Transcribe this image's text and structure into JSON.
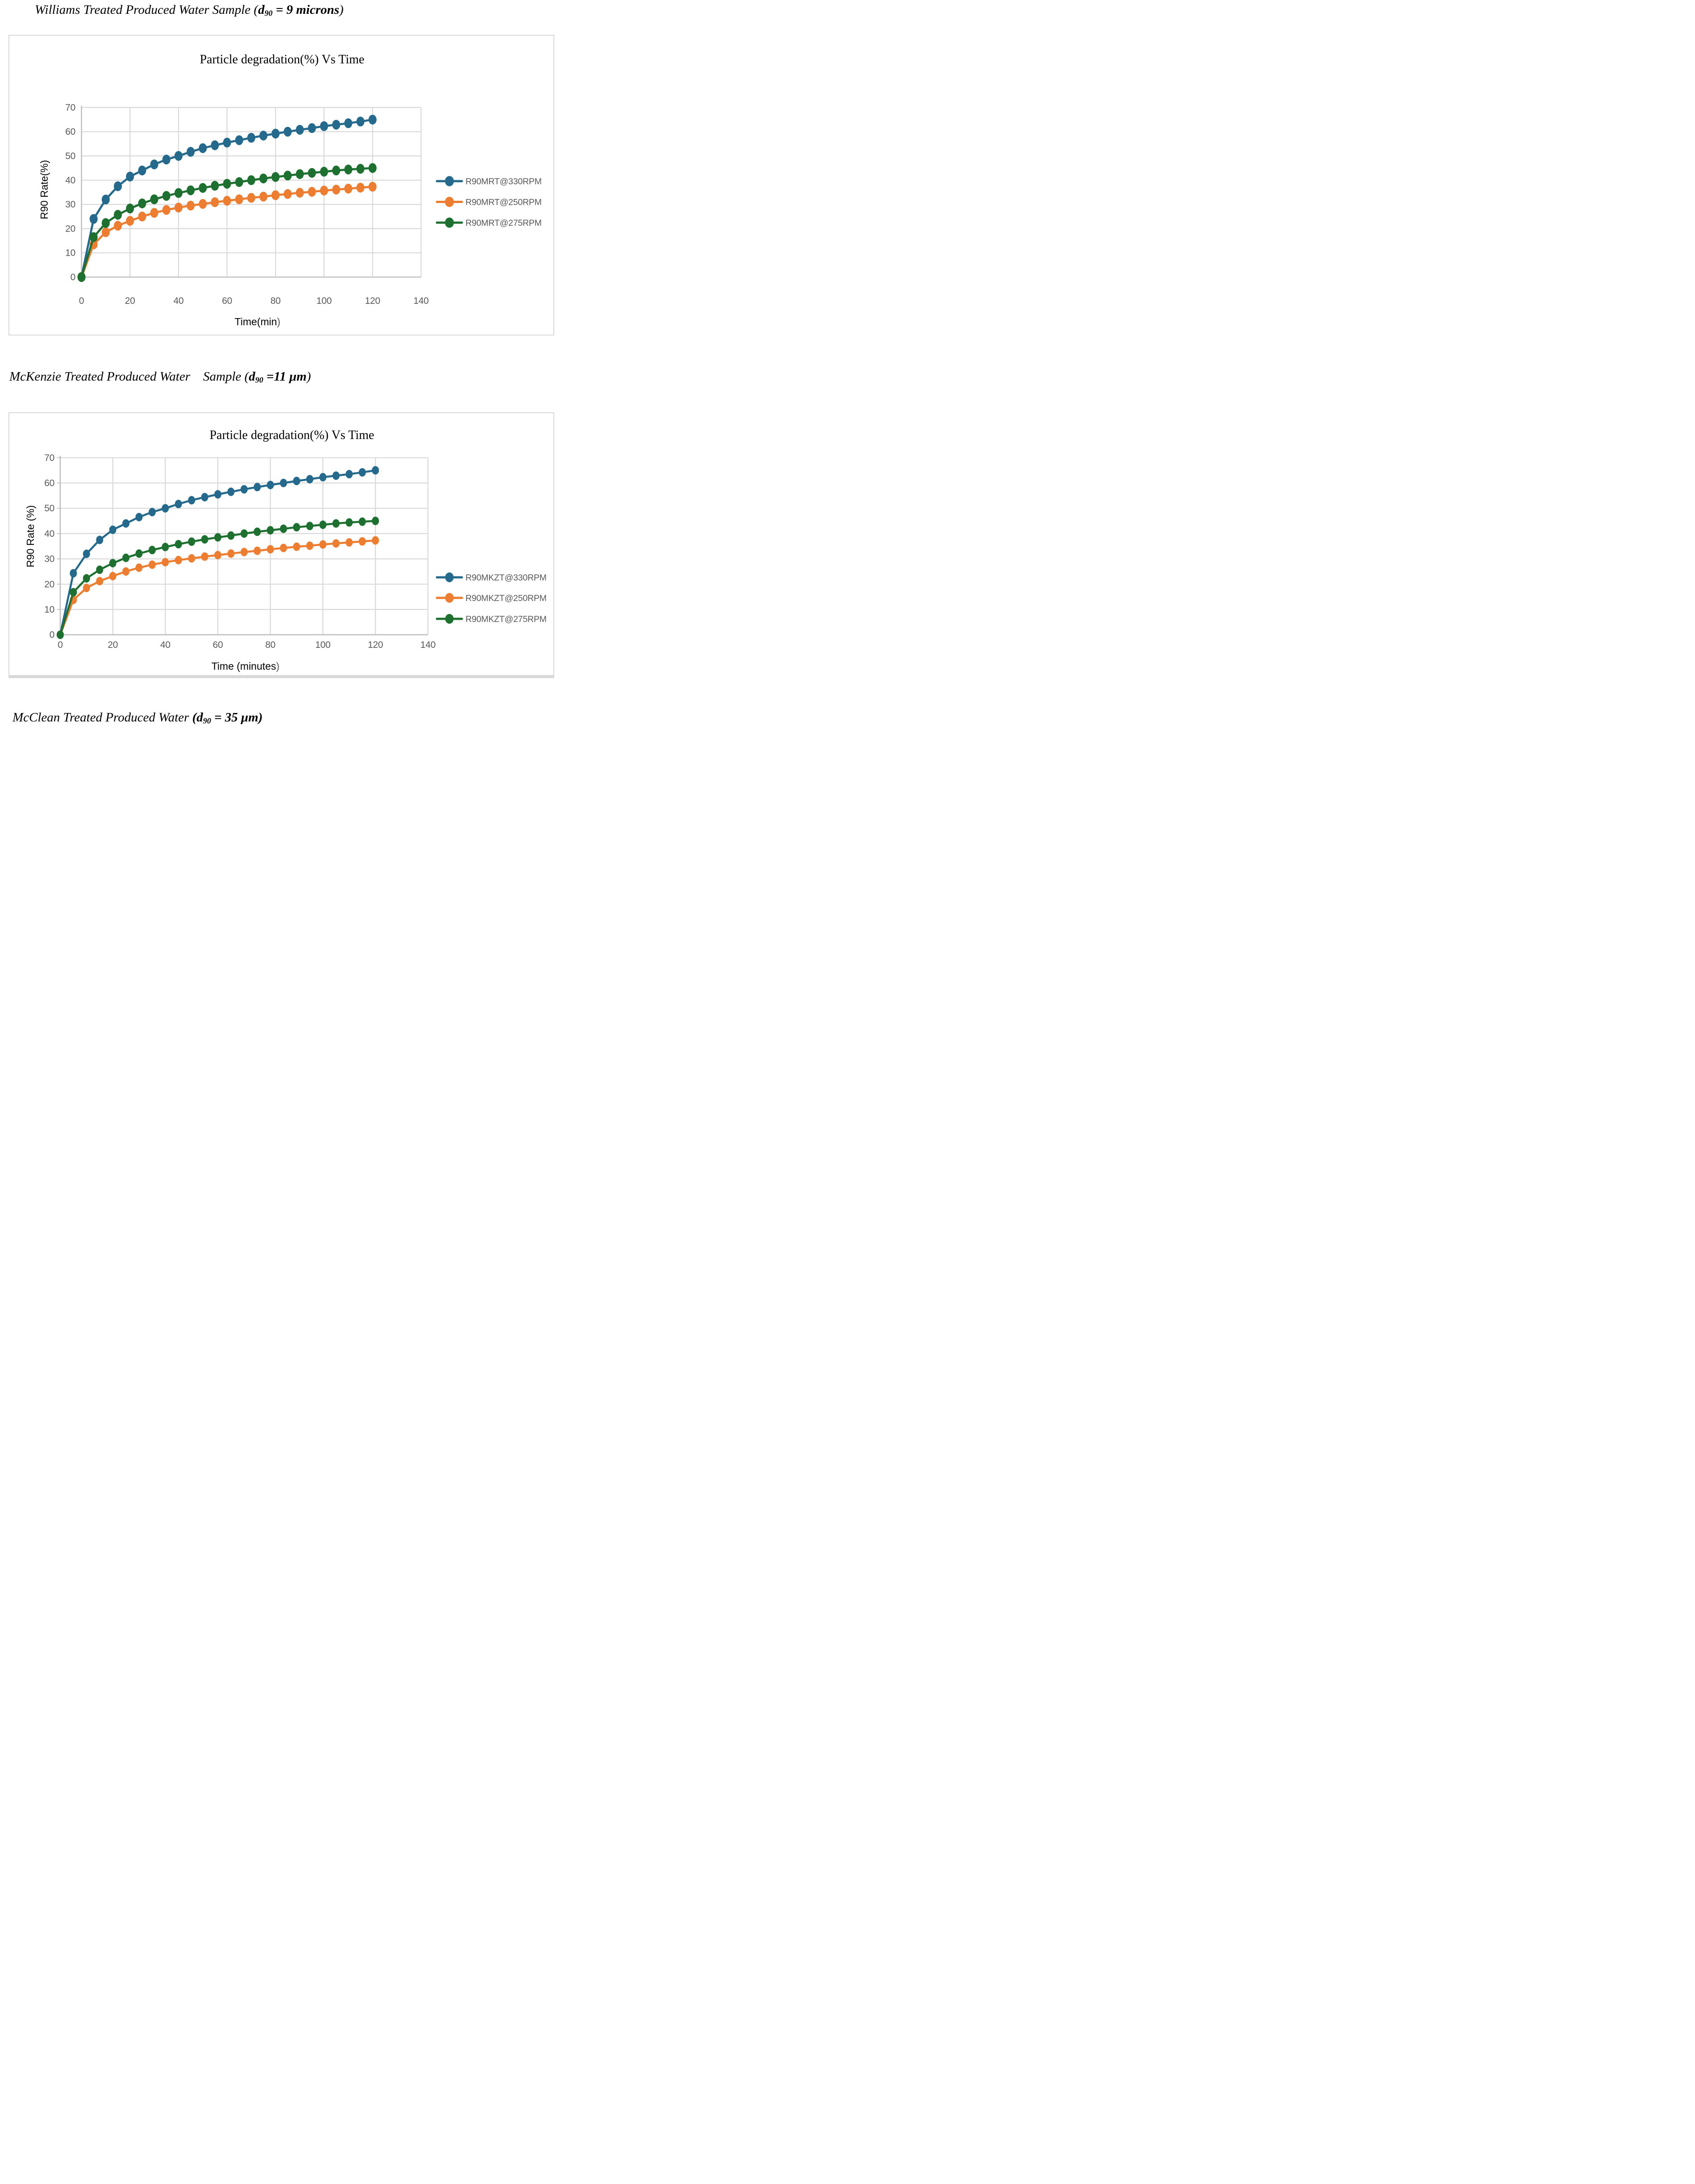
{
  "headings": {
    "h1": {
      "pre": "Williams Treated Produced Water Sample (",
      "d": "d",
      "sub": "90",
      "tail": " = 9 microns",
      "close": ")"
    },
    "h2": {
      "pre": "McKenzie Treated Produced Water   Sample (",
      "d": "d",
      "sub": "90",
      "tail": " =11 μm",
      "close": ")"
    },
    "h3": {
      "pre": "McClean Treated Produced Water ",
      "open": "(",
      "d": "d",
      "sub": "90",
      "tail": " = 35 μm",
      "close": ")"
    }
  },
  "colors": {
    "series_blue": "#256A8C",
    "series_orange": "#ED7D31",
    "series_green": "#1E7031",
    "gridline": "#D9D9D9",
    "axis_line": "#BFBFBF",
    "tick_text": "#595959",
    "legend_text": "#595959",
    "title_text": "#000000"
  },
  "chart_data": [
    {
      "type": "line",
      "title": "Particle degradation(%) Vs Time",
      "xlabel": "Time(min",
      "xlabel_close": ")",
      "ylabel": "R90 Rate(%)",
      "xlim": [
        0,
        140
      ],
      "ylim": [
        0,
        70
      ],
      "xticks": [
        0,
        20,
        40,
        60,
        80,
        100,
        120,
        140
      ],
      "yticks": [
        0,
        10,
        20,
        30,
        40,
        50,
        60,
        70
      ],
      "grid": true,
      "legend_position": "right-middle",
      "x": [
        0,
        5,
        10,
        15,
        20,
        25,
        30,
        35,
        40,
        45,
        50,
        55,
        60,
        65,
        70,
        75,
        80,
        85,
        90,
        95,
        100,
        105,
        110,
        115,
        120
      ],
      "series": [
        {
          "name": "R90MRT@330RPM",
          "color": "#256A8C",
          "values": [
            0,
            24,
            32,
            37.5,
            41.5,
            44,
            46.5,
            48.5,
            50,
            51.7,
            53.2,
            54.4,
            55.5,
            56.5,
            57.5,
            58.4,
            59.2,
            60,
            60.8,
            61.5,
            62.3,
            62.9,
            63.5,
            64.2,
            65
          ]
        },
        {
          "name": "R90MRT@250RPM",
          "color": "#ED7D31",
          "values": [
            0,
            13.5,
            18.5,
            21.2,
            23.2,
            25,
            26.5,
            27.7,
            28.7,
            29.5,
            30.2,
            30.9,
            31.5,
            32.1,
            32.7,
            33.2,
            33.8,
            34.3,
            34.8,
            35.2,
            35.7,
            36.1,
            36.5,
            36.9,
            37.3
          ]
        },
        {
          "name": "R90MRT@275RPM",
          "color": "#1E7031",
          "values": [
            0,
            16.5,
            22.3,
            25.7,
            28.3,
            30.4,
            32.1,
            33.5,
            34.7,
            35.8,
            36.8,
            37.7,
            38.5,
            39.2,
            40,
            40.7,
            41.3,
            41.9,
            42.5,
            43,
            43.5,
            44,
            44.4,
            44.7,
            45
          ]
        }
      ]
    },
    {
      "type": "line",
      "title": "Particle degradation(%) Vs Time",
      "xlabel": "Time (minutes",
      "xlabel_close": ")",
      "ylabel": "R90 Rate (%)",
      "xlim": [
        0,
        140
      ],
      "ylim": [
        0,
        70
      ],
      "xticks": [
        0,
        20,
        40,
        60,
        80,
        100,
        120,
        140
      ],
      "yticks": [
        0,
        10,
        20,
        30,
        40,
        50,
        60,
        70
      ],
      "grid": true,
      "legend_position": "right-lower",
      "x": [
        0,
        5,
        10,
        15,
        20,
        25,
        30,
        35,
        40,
        45,
        50,
        55,
        60,
        65,
        70,
        75,
        80,
        85,
        90,
        95,
        100,
        105,
        110,
        115,
        120
      ],
      "series": [
        {
          "name": "R90MKZT@330RPM",
          "color": "#256A8C",
          "values": [
            0,
            24.3,
            32,
            37.5,
            41.5,
            44,
            46.5,
            48.5,
            50,
            51.7,
            53.2,
            54.4,
            55.5,
            56.5,
            57.5,
            58.4,
            59.2,
            60,
            60.8,
            61.5,
            62.3,
            62.9,
            63.5,
            64.2,
            65
          ]
        },
        {
          "name": "R90MKZT@250RPM",
          "color": "#ED7D31",
          "values": [
            0,
            13.8,
            18.5,
            21.2,
            23.2,
            25,
            26.5,
            27.7,
            28.7,
            29.5,
            30.2,
            30.9,
            31.5,
            32.1,
            32.7,
            33.2,
            33.8,
            34.3,
            34.8,
            35.2,
            35.7,
            36.1,
            36.5,
            36.9,
            37.3
          ]
        },
        {
          "name": "R90MKZT@275RPM",
          "color": "#1E7031",
          "values": [
            0,
            16.8,
            22.3,
            25.7,
            28.3,
            30.4,
            32.1,
            33.5,
            34.7,
            35.8,
            36.8,
            37.7,
            38.5,
            39.2,
            40,
            40.7,
            41.3,
            41.9,
            42.5,
            43,
            43.5,
            44,
            44.4,
            44.7,
            45
          ]
        }
      ]
    }
  ]
}
